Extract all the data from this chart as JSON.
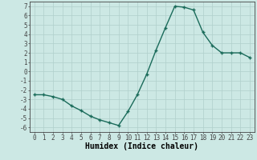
{
  "title": "",
  "xlabel": "Humidex (Indice chaleur)",
  "ylabel": "",
  "x_values": [
    0,
    1,
    2,
    3,
    4,
    5,
    6,
    7,
    8,
    9,
    10,
    11,
    12,
    13,
    14,
    15,
    16,
    17,
    18,
    19,
    20,
    21,
    22,
    23
  ],
  "y_values": [
    -2.5,
    -2.5,
    -2.7,
    -3.0,
    -3.7,
    -4.2,
    -4.8,
    -5.2,
    -5.5,
    -5.8,
    -4.3,
    -2.5,
    -0.3,
    2.3,
    4.7,
    7.0,
    6.9,
    6.6,
    4.2,
    2.8,
    2.0,
    2.0,
    2.0,
    1.5
  ],
  "ylim": [
    -6.5,
    7.5
  ],
  "xlim": [
    -0.5,
    23.5
  ],
  "yticks": [
    -6,
    -5,
    -4,
    -3,
    -2,
    -1,
    0,
    1,
    2,
    3,
    4,
    5,
    6,
    7
  ],
  "xticks": [
    0,
    1,
    2,
    3,
    4,
    5,
    6,
    7,
    8,
    9,
    10,
    11,
    12,
    13,
    14,
    15,
    16,
    17,
    18,
    19,
    20,
    21,
    22,
    23
  ],
  "line_color": "#1a6b5a",
  "marker_color": "#1a6b5a",
  "bg_color": "#cce8e4",
  "grid_color": "#b0cfcb",
  "axis_color": "#444444",
  "tick_fontsize": 5.5,
  "xlabel_fontsize": 7.0
}
